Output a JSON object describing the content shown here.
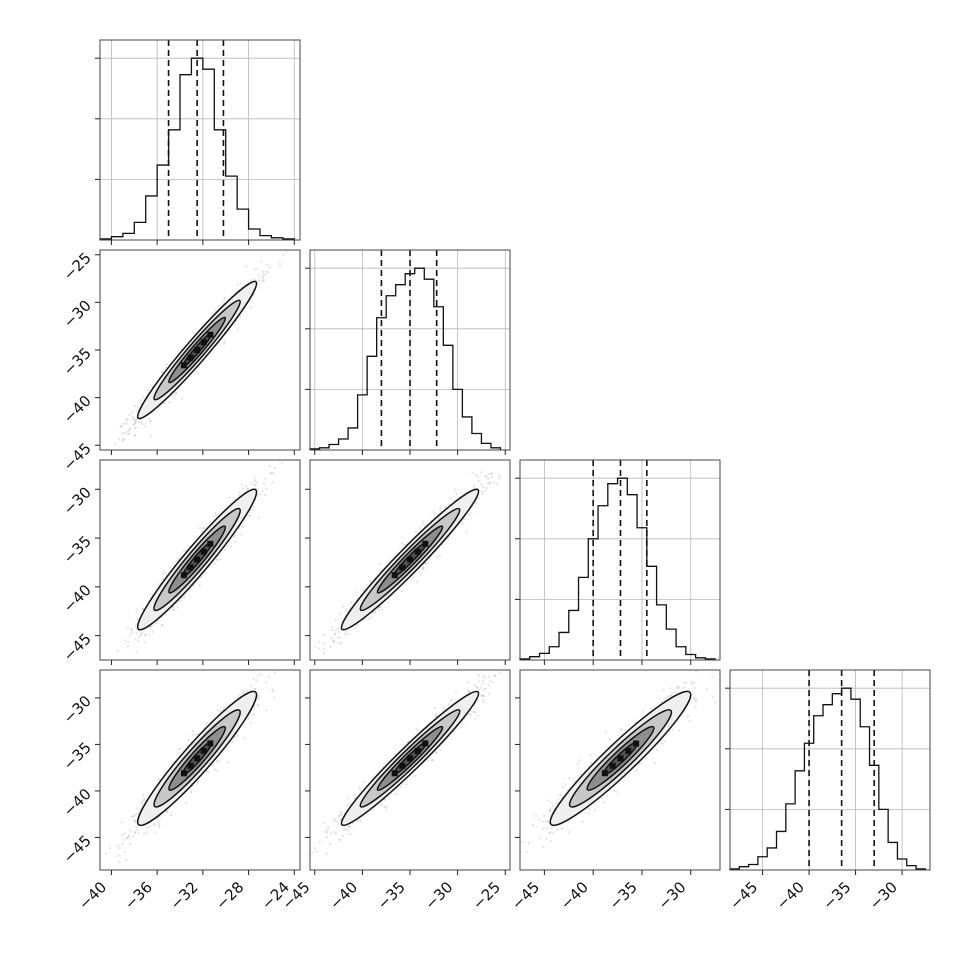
{
  "chart_data": {
    "type": "corner",
    "title": "",
    "n_params": 4,
    "param_labels": [
      "",
      "",
      "",
      ""
    ],
    "quantile_lines": "16th / 50th / 84th percentile (dashed)",
    "colors": {
      "points": "#9a9a9a",
      "lines": "#111111",
      "grid": "#b8b8b8"
    },
    "grid": true,
    "params": [
      {
        "index": 0,
        "range": [
          -41,
          -23.5
        ],
        "x_ticks": [
          -40,
          -36,
          -32,
          -28,
          -24
        ],
        "x_tick_labels": [
          "−40",
          "−36",
          "−32",
          "−28",
          "−24"
        ],
        "y_ticks_as_row": [],
        "y_tick_labels_as_row": [],
        "quantiles": [
          -35.0,
          -32.5,
          -30.2
        ],
        "hist_bins": [
          -41,
          -40,
          -39,
          -38,
          -37,
          -36,
          -35,
          -34,
          -33,
          -32,
          -31,
          -30,
          -29,
          -28,
          -27,
          -26,
          -25,
          -24
        ],
        "hist_counts": [
          1,
          3,
          6,
          16,
          40,
          68,
          100,
          150,
          165,
          155,
          100,
          58,
          28,
          10,
          4,
          2,
          1
        ]
      },
      {
        "index": 1,
        "range": [
          -45.5,
          -24.5
        ],
        "x_ticks": [
          -45,
          -40,
          -35,
          -30,
          -25
        ],
        "x_tick_labels": [
          "−45",
          "−40",
          "−35",
          "−30",
          "−25"
        ],
        "y_ticks_as_row": [
          -45,
          -40,
          -35,
          -30,
          -25
        ],
        "y_tick_labels_as_row": [
          "−45",
          "−40",
          "−35",
          "−30",
          "−25"
        ],
        "quantiles": [
          -38,
          -35,
          -32.2
        ],
        "hist_bins": [
          -45.5,
          -44.5,
          -43.5,
          -42.5,
          -41.5,
          -40.5,
          -39.5,
          -38.5,
          -37.5,
          -36.5,
          -35.5,
          -34.5,
          -33.5,
          -32.5,
          -31.5,
          -30.5,
          -29.5,
          -28.5,
          -27.5,
          -26.5,
          -25.5
        ],
        "hist_counts": [
          1,
          2,
          5,
          10,
          20,
          50,
          85,
          120,
          140,
          150,
          160,
          165,
          155,
          130,
          95,
          55,
          30,
          15,
          6,
          2
        ]
      },
      {
        "index": 2,
        "range": [
          -47.5,
          -27
        ],
        "x_ticks": [
          -45,
          -40,
          -35,
          -30
        ],
        "x_tick_labels": [
          "−45",
          "−40",
          "−35",
          "−30"
        ],
        "y_ticks_as_row": [
          -45,
          -40,
          -35,
          -30
        ],
        "y_tick_labels_as_row": [
          "−45",
          "−40",
          "−35",
          "−30"
        ],
        "quantiles": [
          -40,
          -37.2,
          -34.5
        ],
        "hist_bins": [
          -47.5,
          -46.5,
          -45.5,
          -44.5,
          -43.5,
          -42.5,
          -41.5,
          -40.5,
          -39.5,
          -38.5,
          -37.5,
          -36.5,
          -35.5,
          -34.5,
          -33.5,
          -32.5,
          -31.5,
          -30.5,
          -29.5,
          -28.5,
          -27.5
        ],
        "hist_counts": [
          1,
          3,
          6,
          12,
          25,
          45,
          75,
          110,
          140,
          160,
          165,
          150,
          120,
          85,
          50,
          28,
          12,
          5,
          2,
          1
        ]
      },
      {
        "index": 3,
        "range": [
          -48.5,
          -27
        ],
        "x_ticks": [
          -45,
          -40,
          -35,
          -30
        ],
        "x_tick_labels": [
          "−45",
          "−40",
          "−35",
          "−30"
        ],
        "y_ticks_as_row": [
          -45,
          -40,
          -35,
          -30
        ],
        "y_tick_labels_as_row": [
          "−45",
          "−40",
          "−35",
          "−30"
        ],
        "quantiles": [
          -40,
          -36.5,
          -33
        ],
        "hist_bins": [
          -48.5,
          -47.5,
          -46.5,
          -45.5,
          -44.5,
          -43.5,
          -42.5,
          -41.5,
          -40.5,
          -39.5,
          -38.5,
          -37.5,
          -36.5,
          -35.5,
          -34.5,
          -33.5,
          -32.5,
          -31.5,
          -30.5,
          -29.5,
          -28.5,
          -27.5
        ],
        "hist_counts": [
          1,
          3,
          5,
          12,
          20,
          35,
          60,
          90,
          115,
          140,
          150,
          160,
          165,
          155,
          130,
          95,
          55,
          25,
          10,
          4,
          1
        ]
      }
    ],
    "pairs": [
      {
        "x_param": 0,
        "y_param": 1,
        "mean": [
          -32.5,
          -35
        ],
        "std": [
          2.6,
          3.6
        ],
        "correlation": 0.97
      },
      {
        "x_param": 0,
        "y_param": 2,
        "mean": [
          -32.5,
          -37.2
        ],
        "std": [
          2.6,
          3.6
        ],
        "correlation": 0.96
      },
      {
        "x_param": 1,
        "y_param": 2,
        "mean": [
          -35,
          -37.2
        ],
        "std": [
          3.6,
          3.6
        ],
        "correlation": 0.97
      },
      {
        "x_param": 0,
        "y_param": 3,
        "mean": [
          -32.5,
          -36.5
        ],
        "std": [
          2.6,
          3.6
        ],
        "correlation": 0.95
      },
      {
        "x_param": 1,
        "y_param": 3,
        "mean": [
          -35,
          -36.5
        ],
        "std": [
          3.6,
          3.6
        ],
        "correlation": 0.97
      },
      {
        "x_param": 2,
        "y_param": 3,
        "mean": [
          -37.2,
          -36.5
        ],
        "std": [
          3.6,
          3.6
        ],
        "correlation": 0.95
      }
    ]
  }
}
